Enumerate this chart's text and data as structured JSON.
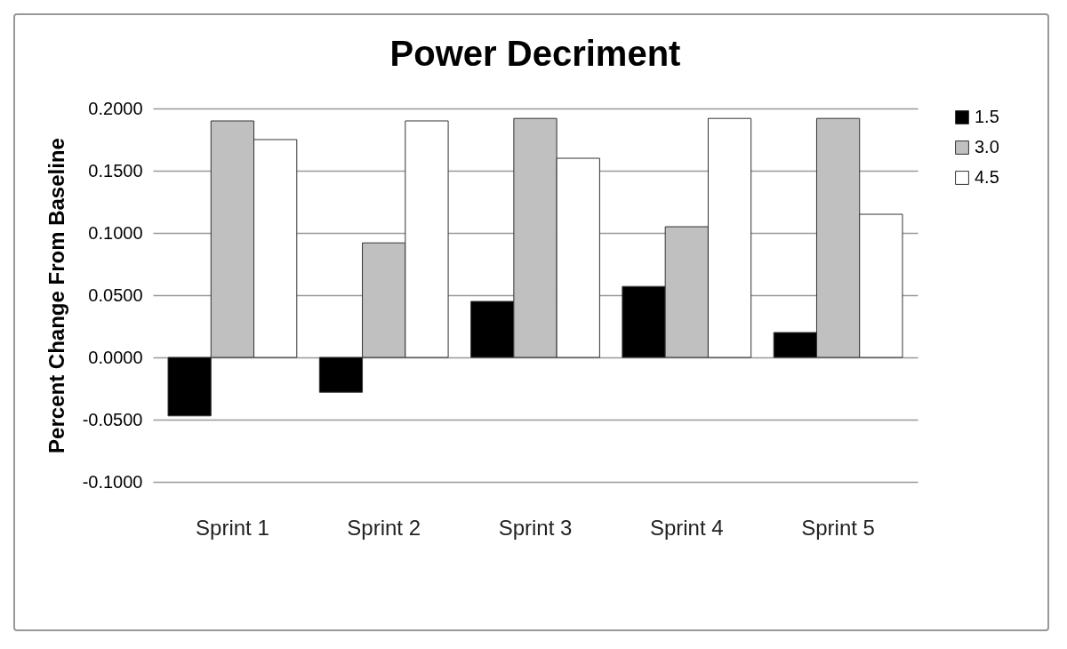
{
  "chart_data": {
    "type": "bar",
    "title": "Power Decriment",
    "ylabel": "Percent Change From Baseline",
    "categories": [
      "Sprint 1",
      "Sprint 2",
      "Sprint 3",
      "Sprint 4",
      "Sprint 5"
    ],
    "series": [
      {
        "name": "1.5",
        "color": "#000000",
        "values": [
          -0.047,
          -0.028,
          0.045,
          0.057,
          0.02
        ]
      },
      {
        "name": "3.0",
        "color": "#c0c0c0",
        "values": [
          0.19,
          0.092,
          0.192,
          0.105,
          0.192
        ]
      },
      {
        "name": "4.5",
        "color": "#ffffff",
        "values": [
          0.175,
          0.19,
          0.16,
          0.192,
          0.115
        ]
      }
    ],
    "ylim": [
      -0.1,
      0.2
    ],
    "yticks": [
      {
        "value": -0.1,
        "label": "-0.1000"
      },
      {
        "value": -0.05,
        "label": "-0.0500"
      },
      {
        "value": 0,
        "label": "0.0000"
      },
      {
        "value": 0.05,
        "label": "0.0500"
      },
      {
        "value": 0.1,
        "label": "0.1000"
      },
      {
        "value": 0.15,
        "label": "0.1500"
      },
      {
        "value": 0.2,
        "label": "0.2000"
      }
    ],
    "grid": "y",
    "legend": "right"
  }
}
